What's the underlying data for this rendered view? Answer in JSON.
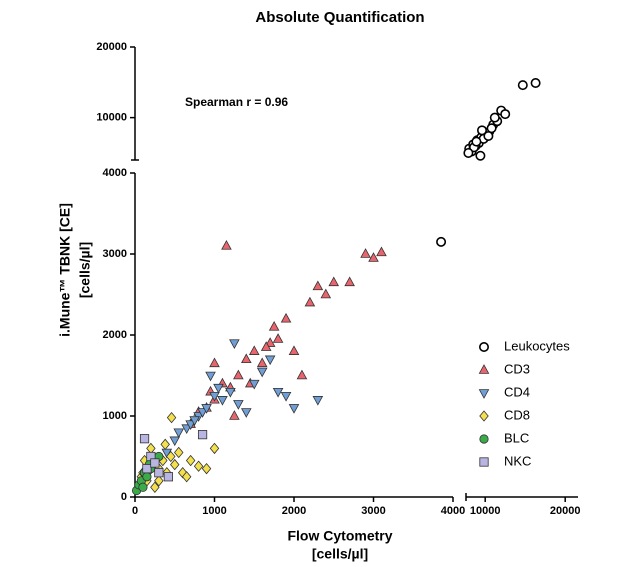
{
  "chart_data": {
    "type": "scatter",
    "title": "Absolute Quantification",
    "annotation": "Spearman r = 0.96",
    "xlabel": [
      "Flow Cytometry",
      "[cells/µl]"
    ],
    "ylabel": [
      "i.Mune™ TBNK [CE]",
      "[cells/µl]"
    ],
    "xlim": [
      0,
      4000
    ],
    "xticks": [
      0,
      1000,
      2000,
      3000,
      4000
    ],
    "x2lim": [
      7600,
      21600
    ],
    "x2ticks": [
      10000,
      20000
    ],
    "ylim": [
      0,
      4000
    ],
    "yticks": [
      0,
      1000,
      2000,
      3000,
      4000
    ],
    "y2lim": [
      4000,
      20000
    ],
    "y2ticks": [
      10000,
      20000
    ],
    "legend": "lower right",
    "series": [
      {
        "name": "Leukocytes",
        "color": "#ffffff",
        "marker": "circle",
        "x": [
          3850,
          8000,
          8500,
          9000,
          9500,
          10000,
          10500,
          11000,
          9200,
          8800,
          10200,
          11500,
          12000,
          9800,
          8300,
          10800,
          11200,
          9600,
          8600,
          14700,
          16300,
          12500,
          9400,
          10400,
          7900,
          8900
        ],
        "y": [
          3150,
          5600,
          6200,
          6800,
          7200,
          7500,
          8000,
          9000,
          6400,
          6000,
          7800,
          9500,
          11000,
          7000,
          5200,
          8500,
          10000,
          8200,
          5800,
          14600,
          14900,
          10500,
          4600,
          7400,
          5000,
          6600
        ]
      },
      {
        "name": "CD3",
        "color": "#e8656e",
        "marker": "triangle-up",
        "x": [
          700,
          800,
          900,
          950,
          1000,
          1100,
          1150,
          1200,
          1300,
          1400,
          1500,
          1600,
          1700,
          1750,
          1800,
          1900,
          2000,
          2100,
          2200,
          2300,
          2400,
          2500,
          2700,
          2900,
          3000,
          3100,
          1000,
          1250,
          1450,
          1650
        ],
        "y": [
          900,
          1050,
          1100,
          1300,
          1200,
          1400,
          3100,
          1350,
          1500,
          1700,
          1800,
          1650,
          1900,
          2100,
          1950,
          2200,
          1800,
          1500,
          2400,
          2600,
          2500,
          2650,
          2650,
          3000,
          2950,
          3020,
          1650,
          1000,
          1400,
          1850
        ]
      },
      {
        "name": "CD4",
        "color": "#6f9fd6",
        "marker": "triangle-down",
        "x": [
          400,
          500,
          550,
          650,
          700,
          800,
          850,
          900,
          1000,
          1050,
          1100,
          1200,
          1300,
          1400,
          1500,
          1600,
          1700,
          1800,
          1900,
          2000,
          2300,
          1250,
          950,
          750
        ],
        "y": [
          550,
          700,
          800,
          850,
          900,
          1000,
          1050,
          1100,
          1250,
          1350,
          1200,
          1300,
          1150,
          1050,
          1400,
          1550,
          1700,
          1300,
          1250,
          1100,
          1200,
          1900,
          1500,
          950
        ]
      },
      {
        "name": "CD8",
        "color": "#f4e04d",
        "marker": "diamond",
        "x": [
          50,
          80,
          100,
          150,
          200,
          250,
          300,
          350,
          400,
          450,
          500,
          550,
          600,
          700,
          800,
          900,
          1000,
          300,
          200,
          120,
          650,
          460,
          380,
          250
        ],
        "y": [
          150,
          250,
          300,
          200,
          350,
          400,
          350,
          450,
          300,
          500,
          400,
          550,
          300,
          450,
          380,
          350,
          600,
          200,
          600,
          450,
          250,
          980,
          650,
          120
        ]
      },
      {
        "name": "BLC",
        "color": "#3bab4a",
        "marker": "circle",
        "x": [
          20,
          50,
          80,
          100,
          120,
          150,
          180,
          200,
          250,
          300
        ],
        "y": [
          80,
          150,
          200,
          120,
          300,
          250,
          400,
          350,
          450,
          500
        ]
      },
      {
        "name": "NKC",
        "color": "#b9b5e2",
        "marker": "square",
        "x": [
          120,
          200,
          300,
          420,
          850,
          150,
          250
        ],
        "y": [
          720,
          500,
          300,
          250,
          770,
          350,
          420
        ]
      }
    ]
  }
}
